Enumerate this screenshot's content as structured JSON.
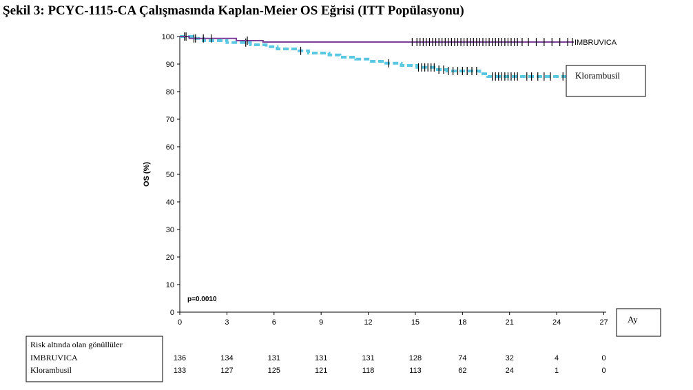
{
  "chart_data": {
    "type": "line",
    "title": "Şekil 3: PCYC-1115-CA Çalışmasında Kaplan-Meier OS Eğrisi (ITT Popülasyonu)",
    "xlabel": "Ay",
    "ylabel": "OS (%)",
    "xlim": [
      0,
      27
    ],
    "ylim": [
      0,
      100
    ],
    "x_ticks": [
      "0",
      "3",
      "6",
      "9",
      "12",
      "15",
      "18",
      "21",
      "24",
      "27"
    ],
    "y_ticks": [
      "0",
      "10",
      "20",
      "30",
      "40",
      "50",
      "60",
      "70",
      "80",
      "90",
      "100"
    ],
    "annotation": "p=0.0010",
    "grid": false,
    "series": [
      {
        "name": "IMBRUVICA",
        "color": "#7b3f98",
        "line_style": "solid",
        "steps": [
          [
            0,
            100
          ],
          [
            0.6,
            100
          ],
          [
            0.6,
            99.3
          ],
          [
            3.6,
            99.3
          ],
          [
            3.6,
            98.5
          ],
          [
            5.3,
            98.5
          ],
          [
            5.3,
            98
          ],
          [
            25.1,
            98
          ]
        ],
        "censor_x": [
          0.4,
          1.0,
          1.5,
          2.0,
          4.3,
          14.8,
          15.1,
          15.3,
          15.5,
          15.7,
          15.9,
          16.1,
          16.3,
          16.5,
          16.7,
          16.9,
          17.1,
          17.3,
          17.5,
          17.7,
          17.9,
          18.1,
          18.3,
          18.5,
          18.7,
          18.9,
          19.1,
          19.3,
          19.5,
          19.7,
          19.9,
          20.1,
          20.3,
          20.5,
          20.7,
          20.9,
          21.1,
          21.3,
          21.5,
          21.8,
          22.2,
          22.7,
          23.2,
          23.7,
          24.2,
          24.7,
          25.0
        ]
      },
      {
        "name": "Klorambusil",
        "color": "#5bc8e3",
        "line_style": "dashed",
        "steps": [
          [
            0,
            100
          ],
          [
            0.8,
            99.3
          ],
          [
            1.5,
            98.5
          ],
          [
            3.0,
            97.8
          ],
          [
            4.5,
            97
          ],
          [
            5.5,
            96.3
          ],
          [
            6.2,
            95.5
          ],
          [
            7.5,
            94.8
          ],
          [
            8.2,
            94
          ],
          [
            9.5,
            93.3
          ],
          [
            10.2,
            92.5
          ],
          [
            11.2,
            91.8
          ],
          [
            12.2,
            91
          ],
          [
            13.0,
            90.3
          ],
          [
            14.1,
            89.5
          ],
          [
            15.1,
            88.8
          ],
          [
            16.3,
            88
          ],
          [
            17.0,
            87.5
          ],
          [
            19.1,
            86.5
          ],
          [
            19.6,
            85.5
          ],
          [
            22.2,
            85.5
          ],
          [
            25.0,
            85.5
          ]
        ],
        "censor_x": [
          0.3,
          0.9,
          4.2,
          7.7,
          13.3,
          15.2,
          15.4,
          15.6,
          15.8,
          16.0,
          16.2,
          16.5,
          16.8,
          17.1,
          17.4,
          17.7,
          18.0,
          18.3,
          18.6,
          18.9,
          19.9,
          20.1,
          20.3,
          20.5,
          20.7,
          20.9,
          21.1,
          21.3,
          21.5,
          22.1,
          22.4,
          22.8,
          23.2,
          23.6,
          24.4,
          24.9
        ]
      }
    ],
    "risk_table": {
      "header": "Risk altında olan gönüllüler",
      "rows": [
        {
          "label": "IMBRUVICA",
          "values": [
            "136",
            "134",
            "131",
            "131",
            "131",
            "128",
            "74",
            "32",
            "4",
            "0"
          ]
        },
        {
          "label": "Klorambusil",
          "values": [
            "133",
            "127",
            "125",
            "121",
            "118",
            "113",
            "62",
            "24",
            "1",
            "0"
          ]
        }
      ]
    }
  }
}
